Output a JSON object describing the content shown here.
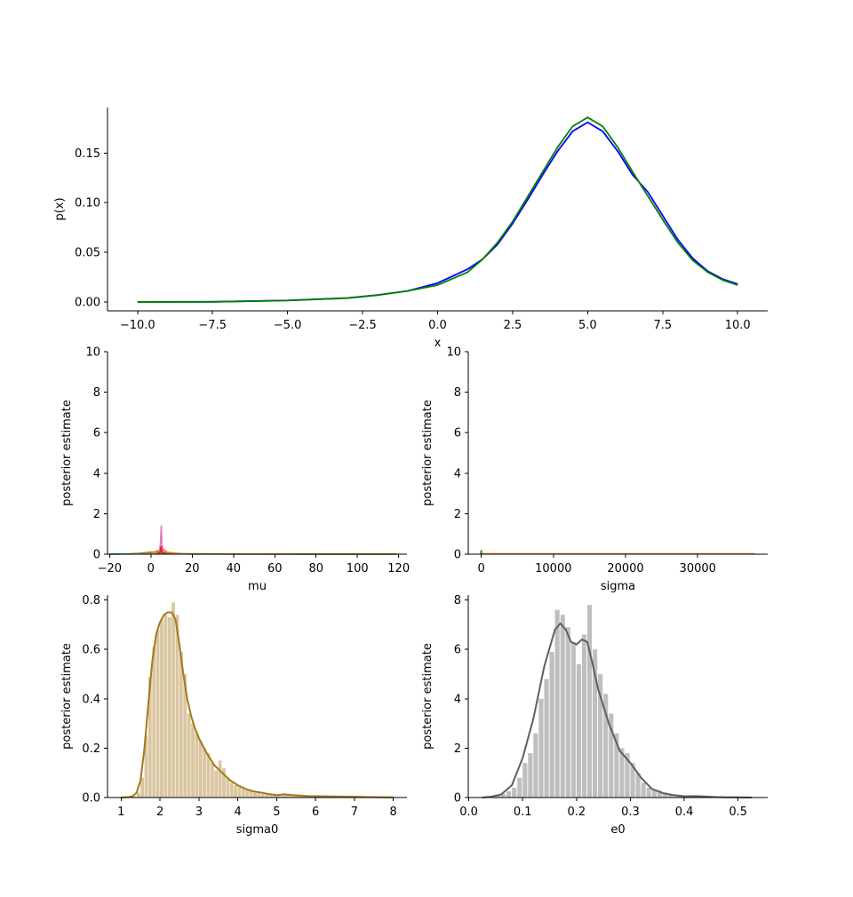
{
  "chart_data": [
    {
      "id": "density",
      "type": "line",
      "xlabel": "x",
      "ylabel": "p(x)",
      "xlim": [
        -11,
        11
      ],
      "ylim": [
        -0.009,
        0.196
      ],
      "xticks": [
        -10.0,
        -7.5,
        -5.0,
        -2.5,
        0.0,
        2.5,
        5.0,
        7.5,
        10.0
      ],
      "xtick_labels": [
        "−10.0",
        "−7.5",
        "−5.0",
        "−2.5",
        "0.0",
        "2.5",
        "5.0",
        "7.5",
        "10.0"
      ],
      "yticks": [
        0.0,
        0.05,
        0.1,
        0.15
      ],
      "ytick_labels": [
        "0.00",
        "0.05",
        "0.10",
        "0.15"
      ],
      "series": [
        {
          "color": "#0000ff",
          "points": [
            [
              -10,
              0.0
            ],
            [
              -7.5,
              0.0001
            ],
            [
              -5,
              0.0015
            ],
            [
              -3,
              0.004
            ],
            [
              -2,
              0.007
            ],
            [
              -1,
              0.011
            ],
            [
              0,
              0.019
            ],
            [
              1,
              0.033
            ],
            [
              1.5,
              0.043
            ],
            [
              2,
              0.058
            ],
            [
              2.5,
              0.079
            ],
            [
              3,
              0.103
            ],
            [
              3.5,
              0.128
            ],
            [
              4,
              0.152
            ],
            [
              4.5,
              0.172
            ],
            [
              5,
              0.181
            ],
            [
              5.5,
              0.172
            ],
            [
              6,
              0.152
            ],
            [
              6.5,
              0.128
            ],
            [
              7,
              0.111
            ],
            [
              7.5,
              0.087
            ],
            [
              8,
              0.063
            ],
            [
              8.5,
              0.044
            ],
            [
              9,
              0.031
            ],
            [
              9.5,
              0.023
            ],
            [
              10,
              0.018
            ]
          ]
        },
        {
          "color": "#008000",
          "points": [
            [
              -10,
              0.0
            ],
            [
              -7.5,
              0.0001
            ],
            [
              -5,
              0.0014
            ],
            [
              -3,
              0.0038
            ],
            [
              -2,
              0.0068
            ],
            [
              -1,
              0.011
            ],
            [
              0,
              0.017
            ],
            [
              1,
              0.03
            ],
            [
              1.5,
              0.043
            ],
            [
              2,
              0.06
            ],
            [
              2.5,
              0.081
            ],
            [
              3,
              0.106
            ],
            [
              3.5,
              0.131
            ],
            [
              4,
              0.156
            ],
            [
              4.5,
              0.177
            ],
            [
              5,
              0.186
            ],
            [
              5.5,
              0.177
            ],
            [
              6,
              0.156
            ],
            [
              6.5,
              0.131
            ],
            [
              7,
              0.107
            ],
            [
              7.5,
              0.083
            ],
            [
              8,
              0.06
            ],
            [
              8.5,
              0.042
            ],
            [
              9,
              0.03
            ],
            [
              9.5,
              0.022
            ],
            [
              10,
              0.017
            ]
          ]
        }
      ]
    },
    {
      "id": "mu",
      "type": "area",
      "xlabel": "mu",
      "ylabel": "posterior estimate",
      "xlim": [
        -21,
        124
      ],
      "ylim": [
        0,
        10
      ],
      "xticks": [
        -20,
        0,
        20,
        40,
        60,
        80,
        100,
        120
      ],
      "xtick_labels": [
        "−20",
        "0",
        "20",
        "40",
        "60",
        "80",
        "100",
        "120"
      ],
      "yticks": [
        0,
        2,
        4,
        6,
        8,
        10
      ],
      "ytick_labels": [
        "0",
        "2",
        "4",
        "6",
        "8",
        "10"
      ],
      "series": [
        {
          "color": "#1f77b4",
          "points": [
            [
              -20,
              0
            ],
            [
              -10,
              0.01
            ],
            [
              -5,
              0.05
            ],
            [
              0,
              0.1
            ],
            [
              3,
              0.12
            ],
            [
              5,
              0.1
            ],
            [
              10,
              0.03
            ],
            [
              20,
              0.005
            ],
            [
              119,
              0
            ]
          ]
        },
        {
          "color": "#2ca02c",
          "points": [
            [
              -20,
              0
            ],
            [
              -5,
              0.03
            ],
            [
              0,
              0.08
            ],
            [
              4,
              0.15
            ],
            [
              6,
              0.1
            ],
            [
              15,
              0.03
            ],
            [
              40,
              0.01
            ],
            [
              119,
              0.005
            ]
          ]
        },
        {
          "color": "#ff7f0e",
          "points": [
            [
              -10,
              0
            ],
            [
              0,
              0.05
            ],
            [
              4,
              0.2
            ],
            [
              6,
              0.25
            ],
            [
              8,
              0.1
            ],
            [
              15,
              0.01
            ],
            [
              119,
              0
            ]
          ]
        },
        {
          "color": "#e377c2",
          "points": [
            [
              3,
              0
            ],
            [
              4,
              0.05
            ],
            [
              4.6,
              0.5
            ],
            [
              5,
              1.42
            ],
            [
              5.4,
              0.5
            ],
            [
              6,
              0.05
            ],
            [
              7,
              0
            ]
          ]
        },
        {
          "color": "#d62728",
          "points": [
            [
              3,
              0
            ],
            [
              4.5,
              0.1
            ],
            [
              5,
              0.4
            ],
            [
              5.5,
              0.1
            ],
            [
              7,
              0
            ]
          ]
        }
      ]
    },
    {
      "id": "sigma",
      "type": "area",
      "xlabel": "sigma",
      "ylabel": "posterior estimate",
      "xlim": [
        -1800,
        39700
      ],
      "ylim": [
        0,
        10
      ],
      "xticks": [
        0,
        10000,
        20000,
        30000
      ],
      "xtick_labels": [
        "0",
        "10000",
        "20000",
        "30000"
      ],
      "yticks": [
        0,
        2,
        4,
        6,
        8,
        10
      ],
      "ytick_labels": [
        "0",
        "2",
        "4",
        "6",
        "8",
        "10"
      ],
      "series": [
        {
          "color": "#2ca02c",
          "points": [
            [
              -100,
              0
            ],
            [
              0,
              0.2
            ],
            [
              100,
              0.05
            ],
            [
              200,
              0
            ]
          ]
        },
        {
          "color": "#ff7f0e",
          "points": [
            [
              -100,
              0
            ],
            [
              0,
              0.02
            ],
            [
              37800,
              0.02
            ],
            [
              37900,
              0
            ]
          ]
        }
      ]
    },
    {
      "id": "sigma0",
      "type": "bar",
      "xlabel": "sigma0",
      "ylabel": "posterior estimate",
      "xlim": [
        0.65,
        8.35
      ],
      "ylim": [
        0,
        0.82
      ],
      "xticks": [
        1,
        2,
        3,
        4,
        5,
        6,
        7,
        8
      ],
      "xtick_labels": [
        "1",
        "2",
        "3",
        "4",
        "5",
        "6",
        "7",
        "8"
      ],
      "yticks": [
        0.0,
        0.2,
        0.4,
        0.6,
        0.8
      ],
      "ytick_labels": [
        "0.0",
        "0.2",
        "0.4",
        "0.6",
        "0.8"
      ],
      "hist_color": "#d9c6a0",
      "kde_color": "#a57719",
      "bins": [
        [
          1.0,
          0.0
        ],
        [
          1.1,
          0.0
        ],
        [
          1.2,
          0.0
        ],
        [
          1.3,
          0.005
        ],
        [
          1.4,
          0.02
        ],
        [
          1.5,
          0.08
        ],
        [
          1.6,
          0.25
        ],
        [
          1.7,
          0.49
        ],
        [
          1.8,
          0.61
        ],
        [
          1.9,
          0.68
        ],
        [
          2.0,
          0.72
        ],
        [
          2.1,
          0.74
        ],
        [
          2.2,
          0.73
        ],
        [
          2.3,
          0.79
        ],
        [
          2.4,
          0.74
        ],
        [
          2.5,
          0.59
        ],
        [
          2.6,
          0.5
        ],
        [
          2.7,
          0.34
        ],
        [
          2.8,
          0.3
        ],
        [
          2.9,
          0.26
        ],
        [
          3.0,
          0.23
        ],
        [
          3.1,
          0.2
        ],
        [
          3.2,
          0.18
        ],
        [
          3.3,
          0.14
        ],
        [
          3.4,
          0.11
        ],
        [
          3.5,
          0.15
        ],
        [
          3.6,
          0.12
        ],
        [
          3.7,
          0.08
        ],
        [
          3.8,
          0.06
        ],
        [
          3.9,
          0.05
        ],
        [
          4.0,
          0.05
        ],
        [
          4.1,
          0.04
        ],
        [
          4.2,
          0.03
        ],
        [
          4.3,
          0.03
        ],
        [
          4.4,
          0.02
        ],
        [
          4.5,
          0.02
        ],
        [
          4.6,
          0.015
        ],
        [
          4.7,
          0.015
        ],
        [
          4.8,
          0.015
        ],
        [
          4.9,
          0.01
        ],
        [
          5.0,
          0.01
        ],
        [
          5.1,
          0.01
        ],
        [
          5.2,
          0.015
        ],
        [
          5.3,
          0.01
        ],
        [
          5.4,
          0.008
        ],
        [
          5.5,
          0.008
        ],
        [
          5.6,
          0.006
        ],
        [
          5.7,
          0.006
        ],
        [
          5.8,
          0.005
        ],
        [
          5.9,
          0.005
        ],
        [
          6.0,
          0.005
        ],
        [
          6.2,
          0.004
        ],
        [
          6.4,
          0.004
        ],
        [
          6.6,
          0.003
        ],
        [
          6.8,
          0.003
        ],
        [
          7.0,
          0.003
        ],
        [
          7.2,
          0.002
        ],
        [
          7.4,
          0.002
        ],
        [
          7.6,
          0.002
        ],
        [
          7.8,
          0.001
        ]
      ],
      "bin_width": 0.1,
      "kde": [
        [
          1.0,
          0.0
        ],
        [
          1.2,
          0.002
        ],
        [
          1.3,
          0.006
        ],
        [
          1.4,
          0.02
        ],
        [
          1.5,
          0.07
        ],
        [
          1.6,
          0.2
        ],
        [
          1.7,
          0.38
        ],
        [
          1.8,
          0.55
        ],
        [
          1.9,
          0.66
        ],
        [
          2.0,
          0.71
        ],
        [
          2.1,
          0.74
        ],
        [
          2.2,
          0.75
        ],
        [
          2.3,
          0.75
        ],
        [
          2.4,
          0.72
        ],
        [
          2.5,
          0.62
        ],
        [
          2.6,
          0.5
        ],
        [
          2.7,
          0.4
        ],
        [
          2.8,
          0.33
        ],
        [
          2.9,
          0.28
        ],
        [
          3.0,
          0.24
        ],
        [
          3.2,
          0.18
        ],
        [
          3.4,
          0.13
        ],
        [
          3.6,
          0.1
        ],
        [
          3.8,
          0.07
        ],
        [
          4.0,
          0.05
        ],
        [
          4.2,
          0.035
        ],
        [
          4.4,
          0.025
        ],
        [
          4.6,
          0.02
        ],
        [
          4.8,
          0.014
        ],
        [
          5.0,
          0.01
        ],
        [
          5.2,
          0.013
        ],
        [
          5.4,
          0.01
        ],
        [
          5.8,
          0.006
        ],
        [
          6.2,
          0.005
        ],
        [
          6.6,
          0.004
        ],
        [
          7.0,
          0.003
        ],
        [
          7.4,
          0.002
        ],
        [
          7.8,
          0.001
        ],
        [
          8.0,
          0.001
        ]
      ]
    },
    {
      "id": "e0",
      "type": "bar",
      "xlabel": "e0",
      "ylabel": "posterior estimate",
      "xlim": [
        -0.001,
        0.555
      ],
      "ylim": [
        0,
        8.2
      ],
      "xticks": [
        0.0,
        0.1,
        0.2,
        0.3,
        0.4,
        0.5
      ],
      "xtick_labels": [
        "0.0",
        "0.1",
        "0.2",
        "0.3",
        "0.4",
        "0.5"
      ],
      "yticks": [
        0,
        2,
        4,
        6,
        8
      ],
      "ytick_labels": [
        "0",
        "2",
        "4",
        "6",
        "8"
      ],
      "hist_color": "#bfbfbf",
      "kde_color": "#5f5f5f",
      "bins": [
        [
          0.025,
          0.0
        ],
        [
          0.04,
          0.05
        ],
        [
          0.05,
          0.1
        ],
        [
          0.06,
          0.15
        ],
        [
          0.07,
          0.25
        ],
        [
          0.08,
          0.4
        ],
        [
          0.09,
          0.8
        ],
        [
          0.1,
          1.4
        ],
        [
          0.11,
          1.8
        ],
        [
          0.12,
          2.6
        ],
        [
          0.13,
          4.0
        ],
        [
          0.14,
          4.8
        ],
        [
          0.15,
          5.9
        ],
        [
          0.16,
          7.6
        ],
        [
          0.17,
          7.4
        ],
        [
          0.18,
          6.9
        ],
        [
          0.19,
          6.3
        ],
        [
          0.2,
          5.4
        ],
        [
          0.21,
          6.6
        ],
        [
          0.22,
          7.8
        ],
        [
          0.23,
          6.0
        ],
        [
          0.24,
          5.0
        ],
        [
          0.25,
          4.2
        ],
        [
          0.26,
          3.4
        ],
        [
          0.27,
          2.6
        ],
        [
          0.28,
          2.0
        ],
        [
          0.29,
          1.8
        ],
        [
          0.3,
          1.4
        ],
        [
          0.31,
          1.0
        ],
        [
          0.32,
          0.6
        ],
        [
          0.33,
          0.4
        ],
        [
          0.34,
          0.3
        ],
        [
          0.35,
          0.3
        ],
        [
          0.36,
          0.2
        ],
        [
          0.37,
          0.15
        ],
        [
          0.38,
          0.1
        ],
        [
          0.39,
          0.1
        ],
        [
          0.4,
          0.08
        ],
        [
          0.41,
          0.07
        ],
        [
          0.42,
          0.06
        ],
        [
          0.43,
          0.05
        ],
        [
          0.44,
          0.04
        ],
        [
          0.45,
          0.03
        ],
        [
          0.46,
          0.02
        ],
        [
          0.48,
          0.01
        ],
        [
          0.5,
          0.01
        ]
      ],
      "bin_width": 0.0095,
      "kde": [
        [
          0.025,
          0.0
        ],
        [
          0.04,
          0.03
        ],
        [
          0.06,
          0.12
        ],
        [
          0.08,
          0.5
        ],
        [
          0.1,
          1.6
        ],
        [
          0.12,
          3.2
        ],
        [
          0.14,
          5.3
        ],
        [
          0.16,
          6.8
        ],
        [
          0.17,
          7.05
        ],
        [
          0.18,
          6.8
        ],
        [
          0.19,
          6.3
        ],
        [
          0.2,
          6.2
        ],
        [
          0.21,
          6.4
        ],
        [
          0.22,
          6.3
        ],
        [
          0.23,
          5.4
        ],
        [
          0.24,
          4.4
        ],
        [
          0.26,
          3.0
        ],
        [
          0.28,
          1.9
        ],
        [
          0.3,
          1.4
        ],
        [
          0.32,
          0.8
        ],
        [
          0.34,
          0.35
        ],
        [
          0.36,
          0.18
        ],
        [
          0.38,
          0.1
        ],
        [
          0.4,
          0.05
        ],
        [
          0.42,
          0.06
        ],
        [
          0.44,
          0.04
        ],
        [
          0.46,
          0.02
        ],
        [
          0.48,
          0.01
        ],
        [
          0.5,
          0.01
        ],
        [
          0.525,
          0.0
        ]
      ]
    }
  ]
}
